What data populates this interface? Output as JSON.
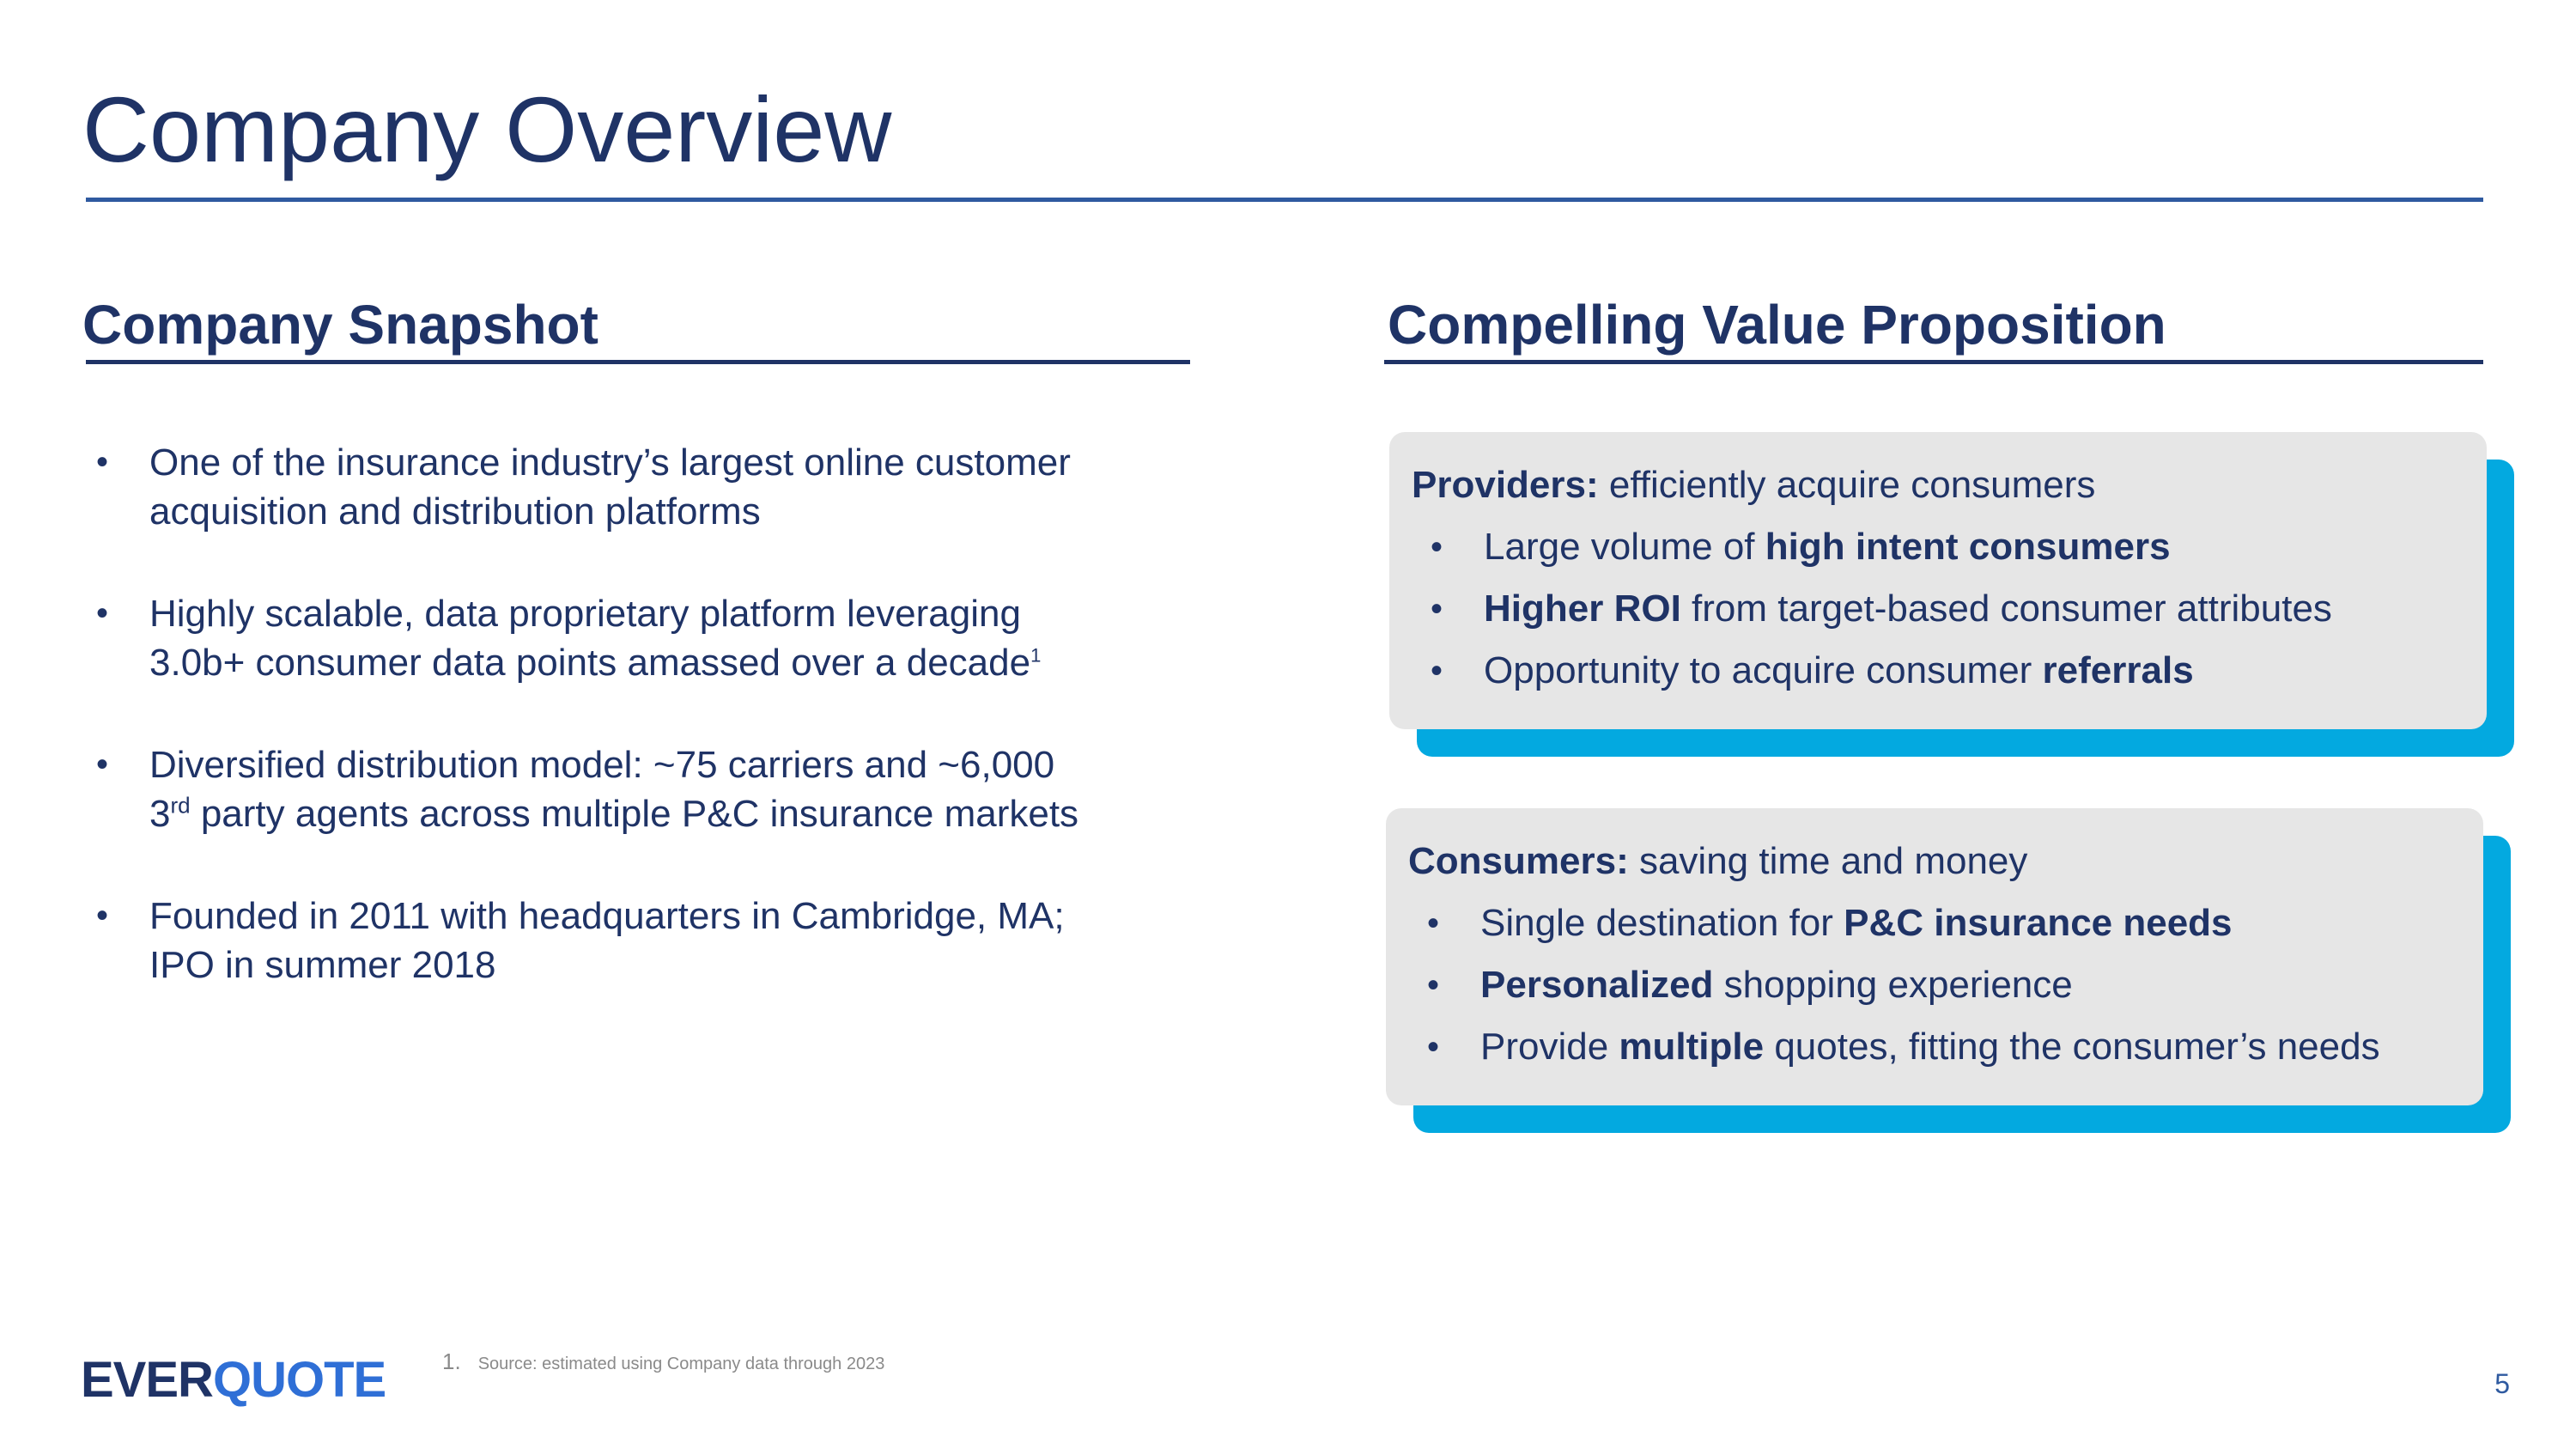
{
  "title": "Company Overview",
  "left": {
    "heading": "Company Snapshot",
    "bullets": [
      {
        "line1": "One of the insurance industry’s largest online customer",
        "line2": "acquisition and distribution platforms"
      },
      {
        "line1": "Highly scalable, data proprietary platform leveraging",
        "line2": "3.0b+ consumer data points amassed over a decade",
        "footnote_mark": "1"
      },
      {
        "line1": "Diversified distribution model: ~75 carriers and ~6,000",
        "line2_prefix": "3",
        "line2_sup": "rd",
        "line2": " party agents across multiple P&C insurance markets"
      },
      {
        "line1": "Founded in 2011 with headquarters in Cambridge, MA;",
        "line2": "IPO in summer 2018"
      }
    ]
  },
  "right": {
    "heading": "Compelling Value Proposition",
    "cards": [
      {
        "head_bold": "Providers:",
        "head_rest": " efficiently acquire consumers",
        "items": [
          {
            "pre": "Large volume of ",
            "bold": "high intent consumers",
            "post": ""
          },
          {
            "pre": "",
            "bold": "Higher ROI",
            "post": " from target-based consumer attributes"
          },
          {
            "pre": "Opportunity to acquire consumer ",
            "bold": "referrals",
            "post": ""
          }
        ]
      },
      {
        "head_bold": "Consumers:",
        "head_rest": " saving time and money",
        "items": [
          {
            "pre": "Single destination for ",
            "bold": "P&C insurance needs",
            "post": ""
          },
          {
            "pre": "",
            "bold": "Personalized",
            "post": " shopping experience"
          },
          {
            "pre": "Provide ",
            "bold": "multiple",
            "post": " quotes, fitting the consumer’s needs"
          }
        ]
      }
    ]
  },
  "footer": {
    "logo_part1": "EVER",
    "logo_part2": "QUOTE",
    "footnote_num": "1.",
    "footnote_text": "Source: estimated using Company data through 2023",
    "page_number": "5"
  },
  "colors": {
    "navy": "#1f3366",
    "rule_blue": "#2f5aa0",
    "card_bg": "#e6e6e6",
    "card_shadow": "#03a9e0",
    "logo_blue": "#2f6fd6"
  },
  "bullet_glyph": "•"
}
